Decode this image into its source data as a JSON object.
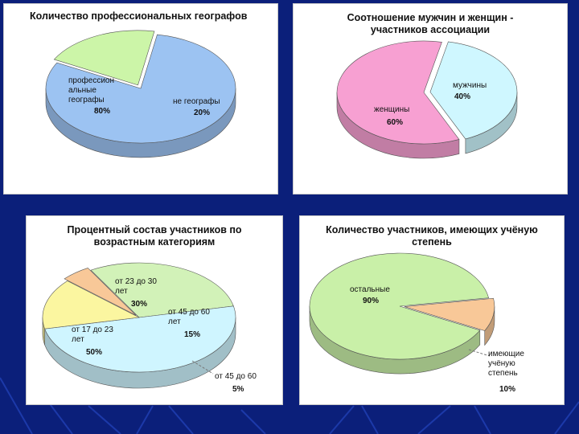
{
  "theme": {
    "background": "#0b1f7a",
    "panel": "#ffffff"
  },
  "chart_data": [
    {
      "type": "pie",
      "title": "Количество профессиональных географов",
      "slices": [
        {
          "label": "профессион альные географы",
          "value": 80,
          "value_label": "80%",
          "color": "#9cc3f2"
        },
        {
          "label": "не географы",
          "value": 20,
          "value_label": "20%",
          "color": "#ccf5a8"
        }
      ]
    },
    {
      "type": "pie",
      "title": "Соотношение мужчин и женщин - участников ассоциации",
      "slices": [
        {
          "label": "мужчины",
          "value": 40,
          "value_label": "40%",
          "color": "#cff7ff"
        },
        {
          "label": "женщины",
          "value": 60,
          "value_label": "60%",
          "color": "#f7a0d2"
        }
      ]
    },
    {
      "type": "pie",
      "title": "Процентный состав участников по возрастным категориям",
      "slices": [
        {
          "label": "от 23 до 30 лет",
          "value": 30,
          "value_label": "30%",
          "color": "#d2f2b8"
        },
        {
          "label": "от 17 до 23 лет",
          "value": 50,
          "value_label": "50%",
          "color": "#cff5ff"
        },
        {
          "label": "от 45 до 60 лет",
          "value": 15,
          "value_label": "15%",
          "color": "#fbf6a0"
        },
        {
          "label": "от 45 до 60",
          "value": 5,
          "value_label": "5%",
          "color": "#f8c898"
        }
      ]
    },
    {
      "type": "pie",
      "title": "Количество участников, имеющих учёную степень",
      "slices": [
        {
          "label": "остальные",
          "value": 90,
          "value_label": "90%",
          "color": "#c9f0a8"
        },
        {
          "label": "имеющие учёную степень",
          "value": 10,
          "value_label": "10%",
          "color": "#f8c898"
        }
      ]
    }
  ]
}
